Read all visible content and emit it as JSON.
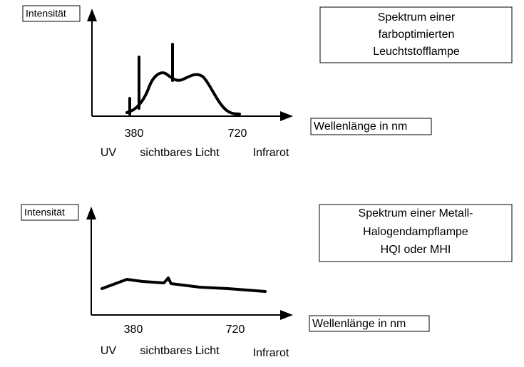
{
  "diagrams": [
    {
      "title_lines": [
        "Spektrum einer",
        "farboptimierten",
        "Leuchtstofflampe"
      ],
      "y_label": "Intensität",
      "x_label": "Wellenlänge in nm",
      "ticks": [
        "380",
        "720"
      ],
      "regions": [
        "UV",
        "sichtbares Licht",
        "Infrarot"
      ]
    },
    {
      "title_lines": [
        "Spektrum einer Metall-",
        "Halogendampflampe",
        "HQI oder MHI"
      ],
      "y_label": "Intensität",
      "x_label": "Wellenlänge in nm",
      "ticks": [
        "380",
        "720"
      ],
      "regions": [
        "UV",
        "sichtbares Licht",
        "Infrarot"
      ]
    }
  ]
}
